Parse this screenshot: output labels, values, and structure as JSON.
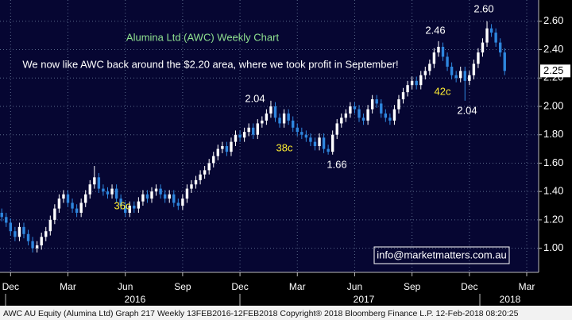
{
  "chart_data": {
    "type": "candlestick",
    "title": "Alumina Ltd (AWC) Weekly Chart",
    "subtitle": "We now like AWC back around the $2.20 area, where we took profit in September!",
    "open": [
      1.25,
      1.22,
      1.18,
      1.12,
      1.08,
      1.15,
      1.1,
      1.05,
      1.0,
      1.02,
      1.08,
      1.12,
      1.2,
      1.28,
      1.35,
      1.38,
      1.32,
      1.28,
      1.25,
      1.32,
      1.38,
      1.45,
      1.5,
      1.42,
      1.4,
      1.38,
      1.42,
      1.35,
      1.3,
      1.25,
      1.3,
      1.28,
      1.33,
      1.38,
      1.35,
      1.4,
      1.42,
      1.38,
      1.35,
      1.38,
      1.32,
      1.3,
      1.35,
      1.42,
      1.45,
      1.48,
      1.52,
      1.55,
      1.6,
      1.65,
      1.7,
      1.72,
      1.68,
      1.75,
      1.8,
      1.78,
      1.82,
      1.85,
      1.8,
      1.88,
      1.9,
      1.95,
      2.0,
      1.92,
      1.88,
      1.95,
      1.9,
      1.85,
      1.82,
      1.8,
      1.78,
      1.75,
      1.72,
      1.78,
      1.7,
      1.68,
      1.8,
      1.88,
      1.92,
      1.95,
      2.0,
      1.98,
      1.92,
      1.9,
      1.98,
      2.05,
      2.02,
      1.95,
      1.92,
      1.9,
      1.98,
      2.05,
      2.1,
      2.15,
      2.18,
      2.15,
      2.22,
      2.25,
      2.3,
      2.38,
      2.42,
      2.35,
      2.28,
      2.22,
      2.2,
      2.25,
      2.18,
      2.22,
      2.3,
      2.38,
      2.45,
      2.55,
      2.52,
      2.45,
      2.38
    ],
    "high": [
      1.28,
      1.25,
      1.21,
      1.15,
      1.18,
      1.18,
      1.13,
      1.08,
      1.05,
      1.11,
      1.15,
      1.23,
      1.31,
      1.38,
      1.41,
      1.41,
      1.35,
      1.31,
      1.35,
      1.41,
      1.48,
      1.58,
      1.53,
      1.45,
      1.43,
      1.45,
      1.45,
      1.38,
      1.33,
      1.33,
      1.33,
      1.36,
      1.41,
      1.41,
      1.43,
      1.45,
      1.45,
      1.41,
      1.41,
      1.41,
      1.35,
      1.38,
      1.45,
      1.48,
      1.51,
      1.55,
      1.58,
      1.63,
      1.68,
      1.73,
      1.75,
      1.75,
      1.78,
      1.83,
      1.83,
      1.85,
      1.88,
      1.88,
      1.91,
      1.93,
      1.98,
      2.04,
      2.03,
      1.95,
      1.98,
      1.98,
      1.93,
      1.88,
      1.85,
      1.83,
      1.81,
      1.78,
      1.81,
      1.81,
      1.73,
      1.83,
      1.91,
      1.95,
      1.98,
      2.03,
      2.03,
      2.01,
      1.95,
      2.01,
      2.08,
      2.08,
      2.05,
      1.98,
      1.95,
      2.01,
      2.08,
      2.13,
      2.18,
      2.21,
      2.21,
      2.25,
      2.28,
      2.33,
      2.41,
      2.46,
      2.45,
      2.38,
      2.31,
      2.25,
      2.28,
      2.28,
      2.25,
      2.33,
      2.41,
      2.48,
      2.6,
      2.58,
      2.55,
      2.48,
      2.41
    ],
    "low": [
      1.19,
      1.15,
      1.09,
      1.05,
      1.05,
      1.07,
      1.02,
      0.97,
      0.97,
      0.99,
      1.05,
      1.09,
      1.17,
      1.25,
      1.32,
      1.29,
      1.25,
      1.22,
      1.22,
      1.29,
      1.35,
      1.42,
      1.39,
      1.37,
      1.35,
      1.35,
      1.32,
      1.27,
      1.22,
      1.22,
      1.25,
      1.25,
      1.3,
      1.32,
      1.32,
      1.37,
      1.35,
      1.32,
      1.32,
      1.29,
      1.27,
      1.27,
      1.32,
      1.39,
      1.42,
      1.45,
      1.49,
      1.52,
      1.57,
      1.62,
      1.67,
      1.65,
      1.65,
      1.72,
      1.75,
      1.75,
      1.79,
      1.77,
      1.77,
      1.85,
      1.87,
      1.92,
      1.89,
      1.85,
      1.85,
      1.87,
      1.82,
      1.79,
      1.77,
      1.75,
      1.72,
      1.69,
      1.69,
      1.67,
      1.66,
      1.66,
      1.77,
      1.85,
      1.89,
      1.92,
      1.95,
      1.89,
      1.87,
      1.87,
      1.95,
      1.99,
      1.92,
      1.89,
      1.87,
      1.87,
      1.95,
      2.02,
      2.07,
      2.12,
      2.12,
      2.12,
      2.19,
      2.22,
      2.27,
      2.35,
      2.32,
      2.25,
      2.19,
      2.17,
      2.17,
      2.04,
      2.15,
      2.19,
      2.27,
      2.35,
      2.42,
      2.49,
      2.42,
      2.35,
      2.22
    ],
    "close": [
      1.22,
      1.18,
      1.12,
      1.08,
      1.15,
      1.1,
      1.05,
      1.0,
      1.02,
      1.08,
      1.12,
      1.2,
      1.28,
      1.35,
      1.38,
      1.32,
      1.28,
      1.25,
      1.32,
      1.38,
      1.45,
      1.5,
      1.42,
      1.4,
      1.38,
      1.42,
      1.35,
      1.3,
      1.25,
      1.3,
      1.28,
      1.33,
      1.38,
      1.35,
      1.4,
      1.42,
      1.38,
      1.35,
      1.38,
      1.32,
      1.3,
      1.35,
      1.42,
      1.45,
      1.48,
      1.52,
      1.55,
      1.6,
      1.65,
      1.7,
      1.72,
      1.68,
      1.75,
      1.8,
      1.78,
      1.82,
      1.85,
      1.8,
      1.88,
      1.9,
      1.95,
      2.0,
      1.92,
      1.88,
      1.95,
      1.9,
      1.85,
      1.82,
      1.8,
      1.78,
      1.75,
      1.72,
      1.78,
      1.7,
      1.68,
      1.8,
      1.88,
      1.92,
      1.95,
      2.0,
      1.98,
      1.92,
      1.9,
      1.98,
      2.05,
      2.02,
      1.95,
      1.92,
      1.9,
      1.98,
      2.05,
      2.1,
      2.15,
      2.18,
      2.15,
      2.22,
      2.25,
      2.3,
      2.38,
      2.42,
      2.35,
      2.28,
      2.22,
      2.2,
      2.25,
      2.18,
      2.22,
      2.3,
      2.38,
      2.45,
      2.55,
      2.52,
      2.45,
      2.38,
      2.25
    ],
    "up_color": "#ffffff",
    "down_color": "#2e86de",
    "xlim": [
      -0.4,
      121.7
    ],
    "xticks": [
      {
        "value": 2,
        "label": "Dec"
      },
      {
        "value": 15,
        "label": "Mar"
      },
      {
        "value": 28,
        "label": "Jun"
      },
      {
        "value": 41,
        "label": "Sep"
      },
      {
        "value": 54,
        "label": "Dec"
      },
      {
        "value": 67,
        "label": "Mar"
      },
      {
        "value": 80,
        "label": "Jun"
      },
      {
        "value": 93,
        "label": "Sep"
      },
      {
        "value": 106,
        "label": "Dec"
      },
      {
        "value": 119,
        "label": "Mar"
      }
    ],
    "years": [
      "2016",
      "2017",
      "2018"
    ],
    "ylim": [
      0.83,
      2.75
    ],
    "yticks": [
      {
        "value": 1,
        "label": "1.00"
      },
      {
        "value": 1.2,
        "label": "1.20"
      },
      {
        "value": 1.4,
        "label": "1.40"
      },
      {
        "value": 1.6,
        "label": "1.60"
      },
      {
        "value": 1.8,
        "label": "1.80"
      },
      {
        "value": 2,
        "label": "2.00"
      },
      {
        "value": 2.2,
        "label": "2.20"
      },
      {
        "value": 2.4,
        "label": "2.40"
      },
      {
        "value": 2.6,
        "label": "2.60"
      }
    ],
    "last_price": 2.25,
    "grid": true,
    "annotations": [
      "2.60",
      "2.46",
      "2.04",
      "1.66",
      "2.04",
      "36c",
      "38c",
      "42c"
    ],
    "email": "info@marketmatters.com.au",
    "footer": "AWC AU Equity (Alumina Ltd) Graph 217  Weekly 13FEB2016-12FEB2018    Copyright® 2018 Bloomberg Finance L.P.     12-Feb-2018 08:20:25"
  }
}
